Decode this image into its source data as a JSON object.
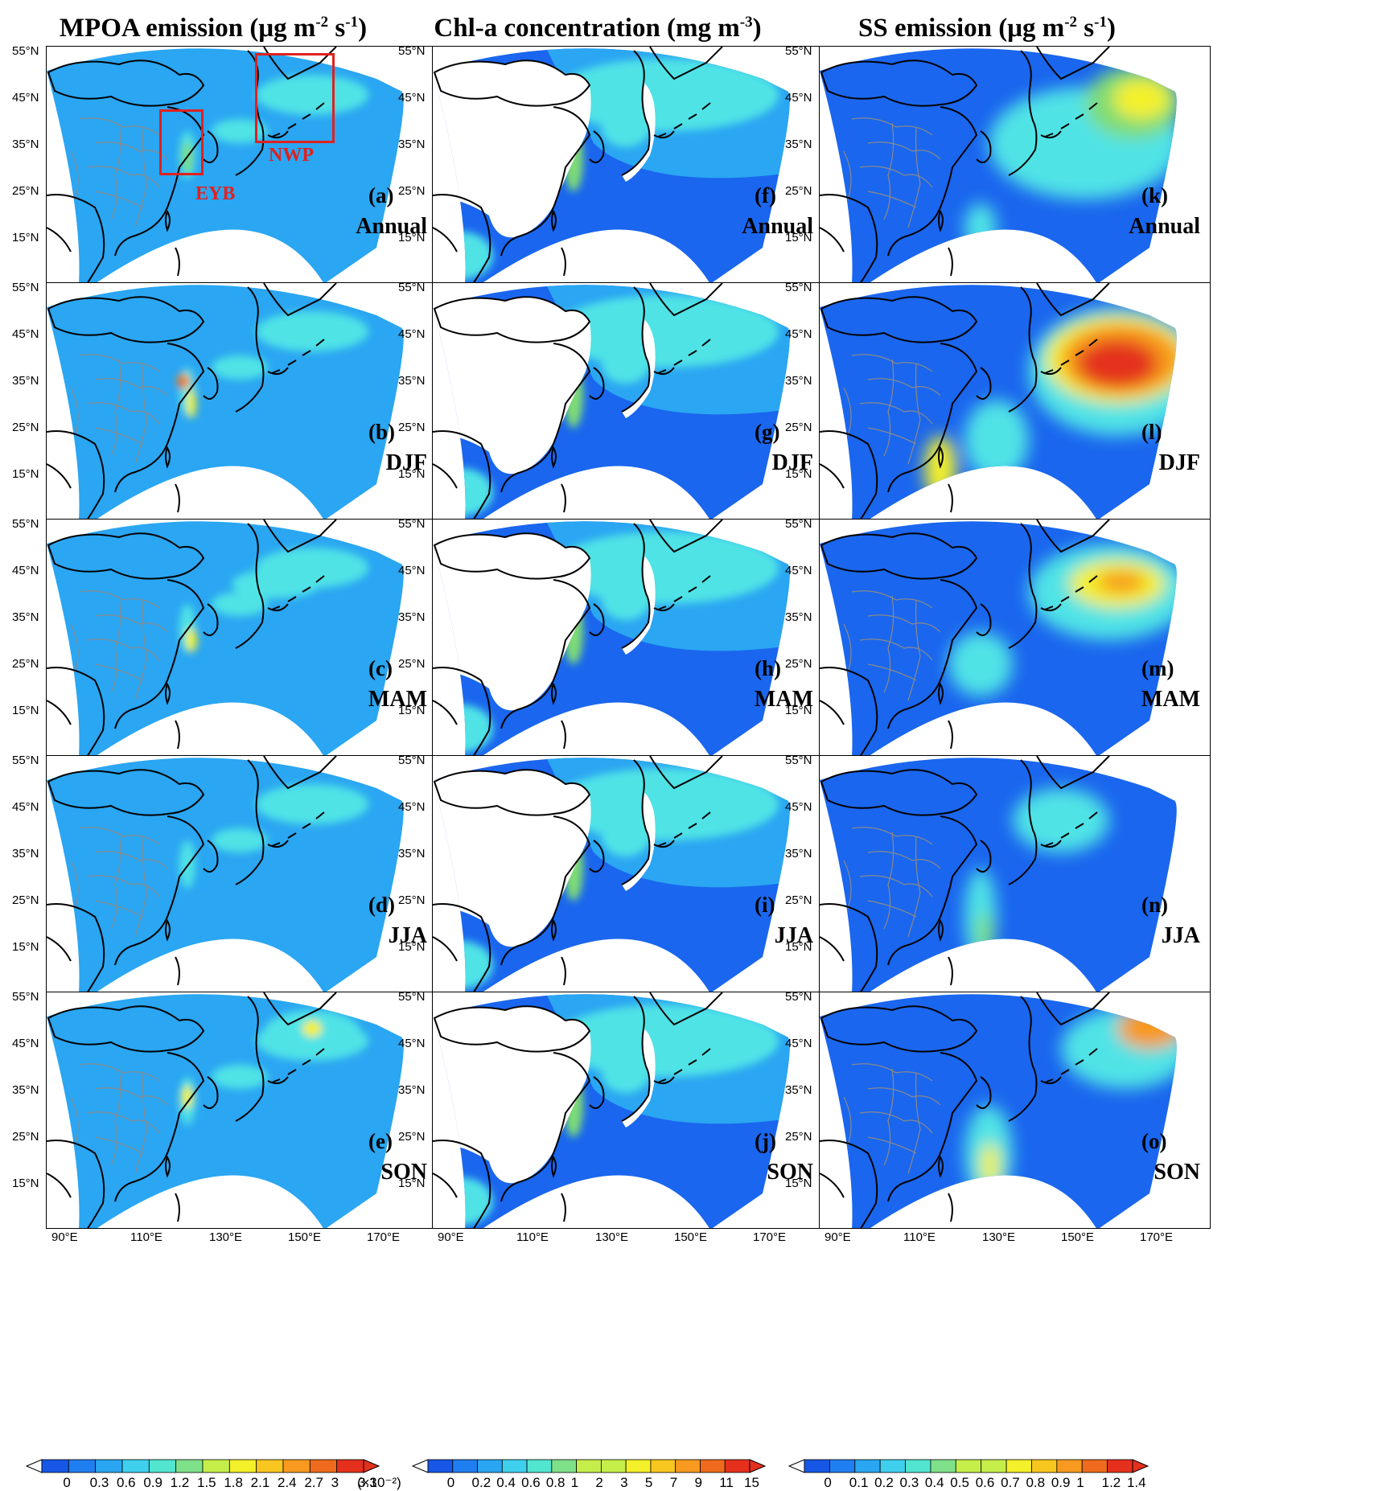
{
  "columns": [
    {
      "id": "mpoa",
      "title": "MPOA emission (μg m",
      "t_exp1": "-2",
      "t_mid": " s",
      "t_exp2": "-1",
      "t_end": ")"
    },
    {
      "id": "chl",
      "title": "Chl-a concentration (mg m",
      "t_exp1": "-3",
      "t_mid": "",
      "t_exp2": "",
      "t_end": ")"
    },
    {
      "id": "ss",
      "title": "SS emission (μg m",
      "t_exp1": "-2",
      "t_mid": " s",
      "t_exp2": "-1",
      "t_end": ")"
    }
  ],
  "panels": [
    {
      "col": 0,
      "row": 0,
      "label": "(a)",
      "season": "Annual",
      "intensity": 0.35
    },
    {
      "col": 0,
      "row": 1,
      "label": "(b)",
      "season": "DJF",
      "intensity": 0.3
    },
    {
      "col": 0,
      "row": 2,
      "label": "(c)",
      "season": "MAM",
      "intensity": 0.4
    },
    {
      "col": 0,
      "row": 3,
      "label": "(d)",
      "season": "JJA",
      "intensity": 0.25
    },
    {
      "col": 0,
      "row": 4,
      "label": "(e)",
      "season": "SON",
      "intensity": 0.45
    },
    {
      "col": 1,
      "row": 0,
      "label": "(f)",
      "season": "Annual",
      "intensity": 0.5
    },
    {
      "col": 1,
      "row": 1,
      "label": "(g)",
      "season": "DJF",
      "intensity": 0.4
    },
    {
      "col": 1,
      "row": 2,
      "label": "(h)",
      "season": "MAM",
      "intensity": 0.5
    },
    {
      "col": 1,
      "row": 3,
      "label": "(i)",
      "season": "JJA",
      "intensity": 0.45
    },
    {
      "col": 1,
      "row": 4,
      "label": "(j)",
      "season": "SON",
      "intensity": 0.5
    },
    {
      "col": 2,
      "row": 0,
      "label": "(k)",
      "season": "Annual",
      "intensity": 0.6
    },
    {
      "col": 2,
      "row": 1,
      "label": "(l)",
      "season": "DJF",
      "intensity": 1.0
    },
    {
      "col": 2,
      "row": 2,
      "label": "(m)",
      "season": "MAM",
      "intensity": 0.7
    },
    {
      "col": 2,
      "row": 3,
      "label": "(n)",
      "season": "JJA",
      "intensity": 0.3
    },
    {
      "col": 2,
      "row": 4,
      "label": "(o)",
      "season": "SON",
      "intensity": 0.75
    }
  ],
  "regions": {
    "eyb": "EYB",
    "nwp": "NWP"
  },
  "lat_ticks": [
    "55°N",
    "45°N",
    "35°N",
    "25°N",
    "15°N"
  ],
  "lon_ticks": [
    "90°E",
    "110°E",
    "130°E",
    "150°E",
    "170°E"
  ],
  "colorbars": [
    {
      "labels": [
        "0",
        "0.3",
        "0.6",
        "0.9",
        "1.2",
        "1.5",
        "1.8",
        "2.1",
        "2.4",
        "2.7",
        "3",
        "3.3"
      ],
      "suffix": "(×10⁻²)"
    },
    {
      "labels": [
        "0",
        "0.2",
        "0.4",
        "0.6",
        "0.8",
        "1",
        "2",
        "3",
        "5",
        "7",
        "9",
        "11",
        "15"
      ],
      "suffix": ""
    },
    {
      "labels": [
        "0",
        "0.1",
        "0.2",
        "0.3",
        "0.4",
        "0.5",
        "0.6",
        "0.7",
        "0.8",
        "0.9",
        "1",
        "1.2",
        "1.4"
      ],
      "suffix": ""
    }
  ],
  "colors": {
    "ocean_low": "#1a66ee",
    "ocean_mid": "#2aa6f2",
    "cyan": "#4fe3e6",
    "green": "#7fdc74",
    "yellow": "#f4f02a",
    "orange": "#f79a1f",
    "red": "#e4301d",
    "border": "#000000",
    "province": "#8a8a8a"
  }
}
